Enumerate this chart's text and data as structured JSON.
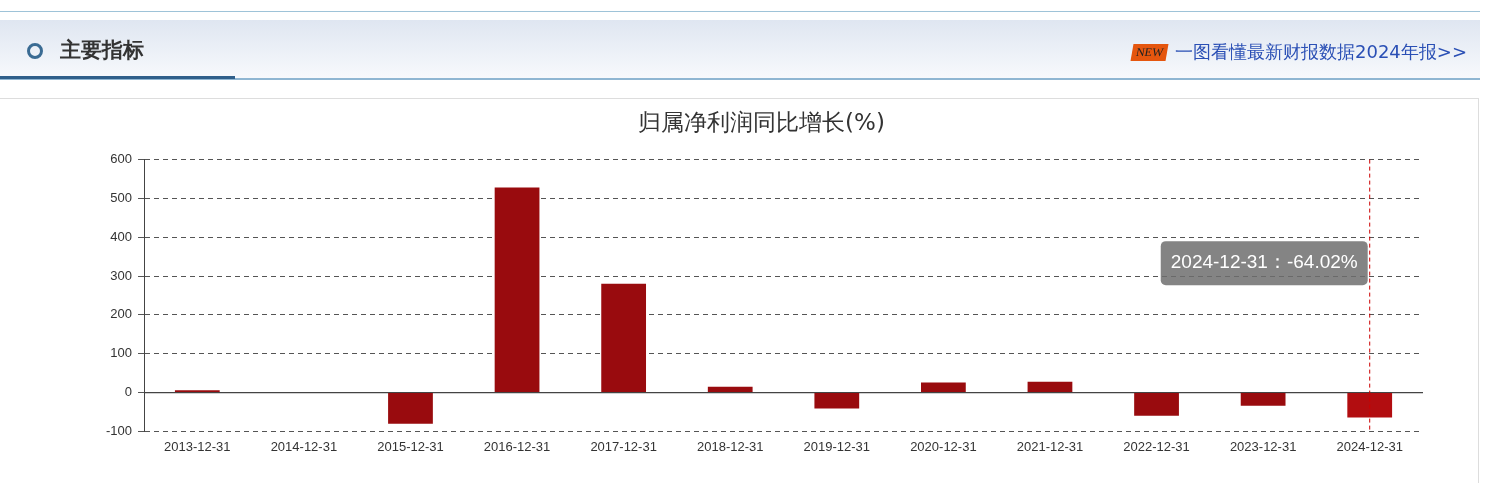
{
  "chart_data": {
    "type": "bar",
    "title": "归属净利润同比增长(%)",
    "categories": [
      "2013-12-31",
      "2014-12-31",
      "2015-12-31",
      "2016-12-31",
      "2017-12-31",
      "2018-12-31",
      "2019-12-31",
      "2020-12-31",
      "2021-12-31",
      "2022-12-31",
      "2023-12-31",
      "2024-12-31"
    ],
    "values": [
      6,
      null,
      -80,
      528,
      280,
      15,
      -41,
      26,
      28,
      -60,
      -34,
      -64.02
    ],
    "colors": [
      "#990b0e",
      "#990b0e",
      "#990b0e",
      "#990b0e",
      "#990b0e",
      "#990b0e",
      "#990b0e",
      "#990b0e",
      "#990b0e",
      "#990b0e",
      "#990b0e",
      "#b20d10"
    ],
    "ylim": [
      -100,
      600
    ],
    "yticks": [
      -100,
      0,
      100,
      200,
      300,
      400,
      500,
      600
    ],
    "grid": "y",
    "ref_lines": [
      {
        "axis": "x",
        "value": "2024-12-31",
        "color": "#cc0000",
        "line_style": "dashed"
      }
    ],
    "annotations": [
      "主要指标",
      "NEW",
      "一图看懂最新财报数据2024年报>>",
      "2024-12-31：-64.02%"
    ]
  }
}
